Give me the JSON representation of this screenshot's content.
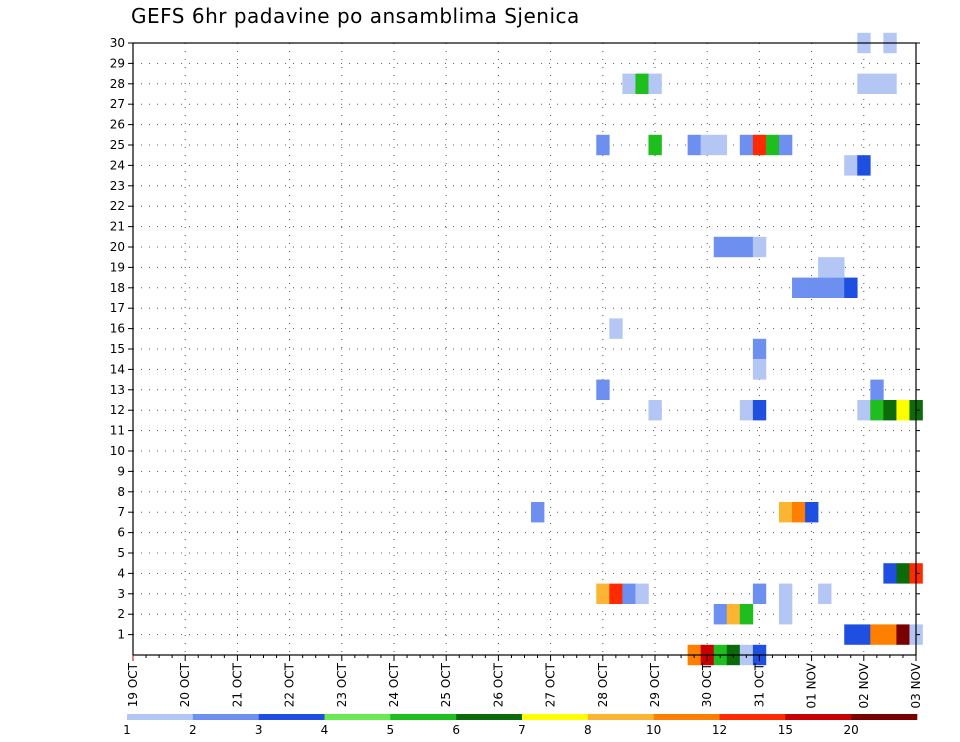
{
  "chart_data": {
    "type": "heatmap",
    "title": "GEFS 6hr padavine po ansamblima Sjenica",
    "xlabel": "",
    "ylabel": "",
    "x_ticks": [
      "19 OCT",
      "20 OCT",
      "21 OCT",
      "22 OCT",
      "23 OCT",
      "24 OCT",
      "25 OCT",
      "26 OCT",
      "27 OCT",
      "28 OCT",
      "29 OCT",
      "30 OCT",
      "31 OCT",
      "01 NOV",
      "02 NOV",
      "03 NOV"
    ],
    "y_ticks": [
      1,
      2,
      3,
      4,
      5,
      6,
      7,
      8,
      9,
      10,
      11,
      12,
      13,
      14,
      15,
      16,
      17,
      18,
      19,
      20,
      21,
      22,
      23,
      24,
      25,
      26,
      27,
      28,
      29,
      30
    ],
    "xlim_days": [
      0,
      15
    ],
    "ylim": [
      0,
      30
    ],
    "grid": true,
    "x_units": "days since 19 OCT 00Z, 6-hour steps",
    "colorbar": {
      "labels": [
        "1",
        "2",
        "3",
        "4",
        "5",
        "6",
        "7",
        "8",
        "10",
        "12",
        "15",
        "20"
      ],
      "colors": [
        "#b4c6f4",
        "#6d8ff0",
        "#1f4fe0",
        "#6aea52",
        "#1dbe1d",
        "#0b6b0b",
        "#ffff00",
        "#fbb532",
        "#ff7f00",
        "#ff2a00",
        "#c80000",
        "#7a0000"
      ]
    },
    "points": [
      {
        "m": 30,
        "t": 14.0,
        "v": 1
      },
      {
        "m": 30,
        "t": 14.5,
        "v": 1
      },
      {
        "m": 28,
        "t": 9.5,
        "v": 1
      },
      {
        "m": 28,
        "t": 9.75,
        "v": 5
      },
      {
        "m": 28,
        "t": 10.0,
        "v": 1
      },
      {
        "m": 28,
        "t": 14.0,
        "v": 1
      },
      {
        "m": 28,
        "t": 14.25,
        "v": 1
      },
      {
        "m": 28,
        "t": 14.5,
        "v": 1
      },
      {
        "m": 25,
        "t": 9.0,
        "v": 2
      },
      {
        "m": 25,
        "t": 10.0,
        "v": 5
      },
      {
        "m": 25,
        "t": 10.75,
        "v": 2
      },
      {
        "m": 25,
        "t": 11.0,
        "v": 1
      },
      {
        "m": 25,
        "t": 11.25,
        "v": 1
      },
      {
        "m": 25,
        "t": 11.75,
        "v": 2
      },
      {
        "m": 25,
        "t": 12.0,
        "v": 12
      },
      {
        "m": 25,
        "t": 12.25,
        "v": 5
      },
      {
        "m": 25,
        "t": 12.5,
        "v": 2
      },
      {
        "m": 24,
        "t": 13.75,
        "v": 1
      },
      {
        "m": 24,
        "t": 14.0,
        "v": 3
      },
      {
        "m": 20,
        "t": 11.25,
        "v": 2
      },
      {
        "m": 20,
        "t": 11.5,
        "v": 2
      },
      {
        "m": 20,
        "t": 11.75,
        "v": 2
      },
      {
        "m": 20,
        "t": 12.0,
        "v": 1
      },
      {
        "m": 19,
        "t": 13.25,
        "v": 1
      },
      {
        "m": 19,
        "t": 13.5,
        "v": 1
      },
      {
        "m": 18,
        "t": 12.75,
        "v": 2
      },
      {
        "m": 18,
        "t": 13.0,
        "v": 2
      },
      {
        "m": 18,
        "t": 13.25,
        "v": 2
      },
      {
        "m": 18,
        "t": 13.5,
        "v": 2
      },
      {
        "m": 18,
        "t": 13.75,
        "v": 3
      },
      {
        "m": 16,
        "t": 9.25,
        "v": 1
      },
      {
        "m": 15,
        "t": 12.0,
        "v": 2
      },
      {
        "m": 14,
        "t": 12.0,
        "v": 1
      },
      {
        "m": 13,
        "t": 9.0,
        "v": 2
      },
      {
        "m": 13,
        "t": 14.25,
        "v": 2
      },
      {
        "m": 12,
        "t": 10.0,
        "v": 1
      },
      {
        "m": 12,
        "t": 11.75,
        "v": 1
      },
      {
        "m": 12,
        "t": 12.0,
        "v": 3
      },
      {
        "m": 12,
        "t": 14.0,
        "v": 1
      },
      {
        "m": 12,
        "t": 14.25,
        "v": 5
      },
      {
        "m": 12,
        "t": 14.5,
        "v": 6
      },
      {
        "m": 12,
        "t": 14.75,
        "v": 7
      },
      {
        "m": 12,
        "t": 15.0,
        "v": 6
      },
      {
        "m": 7,
        "t": 7.75,
        "v": 2
      },
      {
        "m": 7,
        "t": 12.5,
        "v": 8
      },
      {
        "m": 7,
        "t": 12.75,
        "v": 10
      },
      {
        "m": 7,
        "t": 13.0,
        "v": 3
      },
      {
        "m": 4,
        "t": 14.5,
        "v": 3
      },
      {
        "m": 4,
        "t": 14.75,
        "v": 6
      },
      {
        "m": 4,
        "t": 15.0,
        "v": 12
      },
      {
        "m": 3,
        "t": 9.0,
        "v": 8
      },
      {
        "m": 3,
        "t": 9.25,
        "v": 12
      },
      {
        "m": 3,
        "t": 9.5,
        "v": 2
      },
      {
        "m": 3,
        "t": 9.75,
        "v": 1
      },
      {
        "m": 3,
        "t": 12.0,
        "v": 2
      },
      {
        "m": 3,
        "t": 12.5,
        "v": 1
      },
      {
        "m": 3,
        "t": 13.25,
        "v": 1
      },
      {
        "m": 2,
        "t": 11.25,
        "v": 2
      },
      {
        "m": 2,
        "t": 11.5,
        "v": 8
      },
      {
        "m": 2,
        "t": 11.75,
        "v": 5
      },
      {
        "m": 2,
        "t": 12.5,
        "v": 1
      },
      {
        "m": 1,
        "t": 13.75,
        "v": 3
      },
      {
        "m": 1,
        "t": 14.0,
        "v": 3
      },
      {
        "m": 1,
        "t": 14.25,
        "v": 10
      },
      {
        "m": 1,
        "t": 14.5,
        "v": 10
      },
      {
        "m": 1,
        "t": 14.75,
        "v": 20
      },
      {
        "m": 1,
        "t": 15.0,
        "v": 1
      },
      {
        "m": 0,
        "t": 10.75,
        "v": 10
      },
      {
        "m": 0,
        "t": 11.0,
        "v": 15
      },
      {
        "m": 0,
        "t": 11.25,
        "v": 5
      },
      {
        "m": 0,
        "t": 11.5,
        "v": 6
      },
      {
        "m": 0,
        "t": 11.75,
        "v": 1
      },
      {
        "m": 0,
        "t": 12.0,
        "v": 3
      }
    ]
  }
}
